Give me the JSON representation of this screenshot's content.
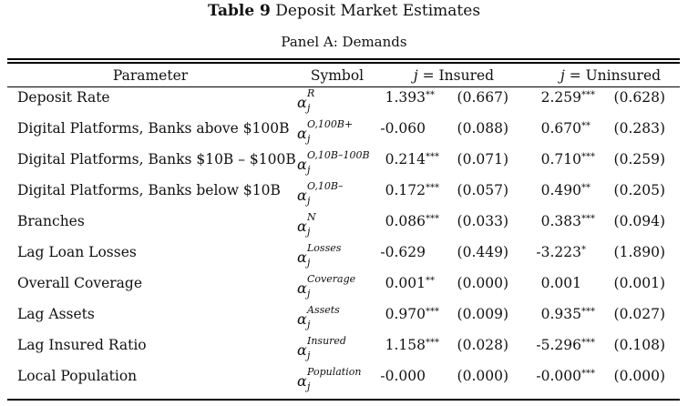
{
  "title": {
    "label": "Table 9",
    "text": "Deposit Market Estimates"
  },
  "panel": "Panel A: Demands",
  "columns": {
    "parameter": "Parameter",
    "symbol": "Symbol",
    "insured": "j = Insured",
    "uninsured": "j = Uninsured"
  },
  "rows": [
    {
      "param": "Deposit Rate",
      "sym_sup": "R",
      "sym_sub": "j",
      "ins_est": "1.393",
      "ins_star": "**",
      "ins_se": "(0.667)",
      "un_est": "2.259",
      "un_star": "***",
      "un_se": "(0.628)"
    },
    {
      "param": "Digital Platforms, Banks above $100B",
      "sym_sup": "O,100B+",
      "sym_sub": "j",
      "ins_est": "-0.060",
      "ins_star": "",
      "ins_se": "(0.088)",
      "un_est": "0.670",
      "un_star": "**",
      "un_se": "(0.283)"
    },
    {
      "param": "Digital Platforms, Banks $10B – $100B",
      "sym_sup": "O,10B–100B",
      "sym_sub": "j",
      "ins_est": "0.214",
      "ins_star": "***",
      "ins_se": "(0.071)",
      "un_est": "0.710",
      "un_star": "***",
      "un_se": "(0.259)"
    },
    {
      "param": "Digital Platforms, Banks below $10B",
      "sym_sup": "O,10B–",
      "sym_sub": "j",
      "ins_est": "0.172",
      "ins_star": "***",
      "ins_se": "(0.057)",
      "un_est": "0.490",
      "un_star": "**",
      "un_se": "(0.205)"
    },
    {
      "param": "Branches",
      "sym_sup": "N",
      "sym_sub": "j",
      "ins_est": "0.086",
      "ins_star": "***",
      "ins_se": "(0.033)",
      "un_est": "0.383",
      "un_star": "***",
      "un_se": "(0.094)"
    },
    {
      "param": "Lag Loan Losses",
      "sym_sup": "Losses",
      "sym_sub": "j",
      "ins_est": "-0.629",
      "ins_star": "",
      "ins_se": "(0.449)",
      "un_est": "-3.223",
      "un_star": "*",
      "un_se": "(1.890)"
    },
    {
      "param": "Overall Coverage",
      "sym_sup": "Coverage",
      "sym_sub": "j",
      "ins_est": "0.001",
      "ins_star": "**",
      "ins_se": "(0.000)",
      "un_est": "0.001",
      "un_star": "",
      "un_se": "(0.001)"
    },
    {
      "param": "Lag Assets",
      "sym_sup": "Assets",
      "sym_sub": "j",
      "ins_est": "0.970",
      "ins_star": "***",
      "ins_se": "(0.009)",
      "un_est": "0.935",
      "un_star": "***",
      "un_se": "(0.027)"
    },
    {
      "param": "Lag Insured Ratio",
      "sym_sup": "Insured",
      "sym_sub": "j",
      "ins_est": "1.158",
      "ins_star": "***",
      "ins_se": "(0.028)",
      "un_est": "-5.296",
      "un_star": "***",
      "un_se": "(0.108)"
    },
    {
      "param": "Local Population",
      "sym_sup": "Population",
      "sym_sub": "j",
      "ins_est": "-0.000",
      "ins_star": "",
      "ins_se": "(0.000)",
      "un_est": "-0.000",
      "un_star": "***",
      "un_se": "(0.000)"
    }
  ]
}
